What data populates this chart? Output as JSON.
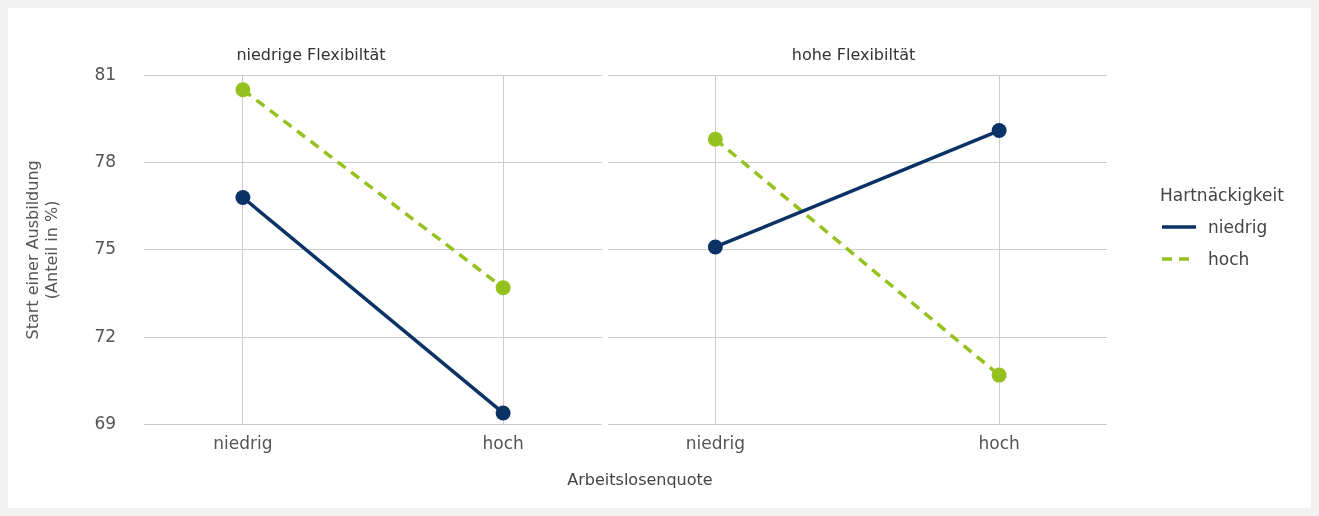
{
  "chart_data": [
    {
      "type": "line",
      "title": "niedrige Flexibiltät",
      "xlabel": "Arbeitslosenquote",
      "ylabel": "Start einer Ausbildung\n(Anteil in %)",
      "categories": [
        "niedrig",
        "hoch"
      ],
      "series": [
        {
          "color": "#0a3264",
          "values": [
            76.8,
            69.4
          ],
          "line_style": "solid"
        },
        {
          "color": "#95c11f",
          "values": [
            80.5,
            73.7
          ],
          "line_style": "dashed"
        }
      ],
      "ylim": [
        69,
        81
      ],
      "yticks": [
        69,
        72,
        75,
        78,
        81
      ],
      "grid": true,
      "marker": "circle"
    },
    {
      "type": "line",
      "title": "hohe Flexibiltät",
      "categories": [
        "niedrig",
        "hoch"
      ],
      "series": [
        {
          "name": "niedrig",
          "color": "#0a3264",
          "values": [
            75.1,
            79.1
          ],
          "line_style": "solid"
        },
        {
          "name": "hoch",
          "color": "#95c11f",
          "values": [
            78.8,
            70.7
          ],
          "line_style": "dashed"
        }
      ],
      "ylim": [
        69,
        81
      ],
      "yticks": [
        69,
        72,
        75,
        78,
        81
      ],
      "grid": true,
      "marker": "circle",
      "tick_labels": "x",
      "legend": "right",
      "legend_title": "Hartnäckigkeit"
    }
  ]
}
